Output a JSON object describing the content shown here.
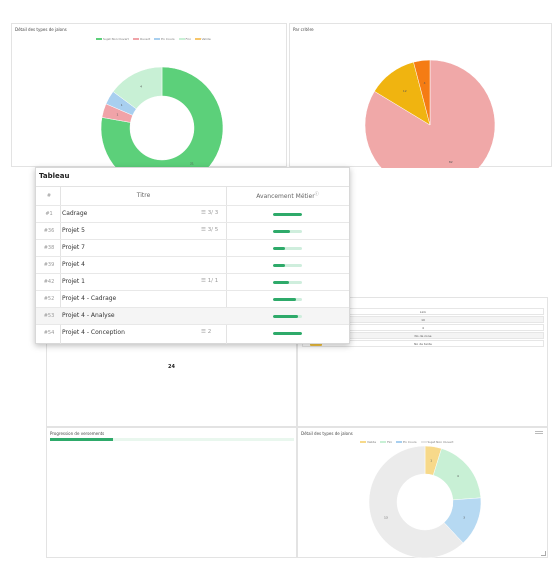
{
  "panel_top_left": {
    "title": "Détail des types de jalons",
    "legend": [
      {
        "label": "Sujet Non Ouvert",
        "color": "#5cd07a"
      },
      {
        "label": "Ouvert",
        "color": "#f0a3a8"
      },
      {
        "label": "En Cours",
        "color": "#a8cfef"
      },
      {
        "label": "Fini",
        "color": "#c8f0d5"
      },
      {
        "label": "Valide",
        "color": "#f7c66a"
      }
    ],
    "chart_data": {
      "type": "pie",
      "donut": true,
      "slices": [
        {
          "label": "Sujet Non Ouvert",
          "value": 21,
          "color": "#5cd07a"
        },
        {
          "label": "Ouvert",
          "value": 1,
          "color": "#f0a3a8"
        },
        {
          "label": "En Cours",
          "value": 1,
          "color": "#a8cfef"
        },
        {
          "label": "Fini",
          "value": 4,
          "color": "#c8f0d5"
        }
      ]
    }
  },
  "panel_top_right": {
    "title": "Par critère",
    "chart_data": {
      "type": "pie",
      "slices": [
        {
          "label": "",
          "value": 82,
          "color": "#f0a8a8"
        },
        {
          "label": "",
          "value": 12,
          "color": "#f0b410"
        },
        {
          "label": "",
          "value": 4,
          "color": "#f57c14"
        }
      ]
    }
  },
  "tableau": {
    "title": "Tableau",
    "columns": [
      "#",
      "Titre",
      "Avancement Métier"
    ],
    "rows": [
      {
        "num": "#1",
        "title": "Cadrage",
        "sub": "3/ 3",
        "progress": 1.0,
        "highlight": false
      },
      {
        "num": "#36",
        "title": "Projet 5",
        "sub": "3/ 5",
        "progress": 0.6,
        "highlight": false
      },
      {
        "num": "#38",
        "title": "Projet 7",
        "sub": "",
        "progress": 0.4,
        "highlight": false
      },
      {
        "num": "#39",
        "title": "Projet 4",
        "sub": "",
        "progress": 0.4,
        "highlight": false
      },
      {
        "num": "#42",
        "title": "Projet 1",
        "sub": "1/ 1",
        "progress": 0.55,
        "highlight": false
      },
      {
        "num": "#52",
        "title": "Projet 4 - Cadrage",
        "sub": "",
        "progress": 0.8,
        "highlight": false
      },
      {
        "num": "#53",
        "title": "Projet 4 - Analyse",
        "sub": "",
        "progress": 0.85,
        "highlight": true
      },
      {
        "num": "#54",
        "title": "Projet 4 - Conception",
        "sub": "2",
        "progress": 1.0,
        "highlight": false
      }
    ]
  },
  "kpi": {
    "value": "24"
  },
  "info_table": {
    "rows": [
      "Link",
      "10",
      "4",
      "No de zone",
      "No de tante"
    ]
  },
  "panel_bottom_left": {
    "title": "Progression de versements",
    "progress": 0.26
  },
  "panel_bottom_right": {
    "title": "Détail des types de jalons",
    "legend": [
      {
        "label": "Valide",
        "color": "#f7d98a"
      },
      {
        "label": "Fini",
        "color": "#c8f0d5"
      },
      {
        "label": "En Cours",
        "color": "#a8cfef"
      },
      {
        "label": "Sujet Non Ouvert",
        "color": "#e6e6e6"
      }
    ],
    "chart_data": {
      "type": "pie",
      "donut": true,
      "slices": [
        {
          "label": "Valide",
          "value": 1,
          "color": "#f7d98a"
        },
        {
          "label": "Fini",
          "value": 4,
          "color": "#c8f0d5"
        },
        {
          "label": "En Cours",
          "value": 3,
          "color": "#b6d9f2"
        },
        {
          "label": "Sujet Non Ouvert",
          "value": 13,
          "color": "#ebebeb"
        }
      ]
    }
  }
}
